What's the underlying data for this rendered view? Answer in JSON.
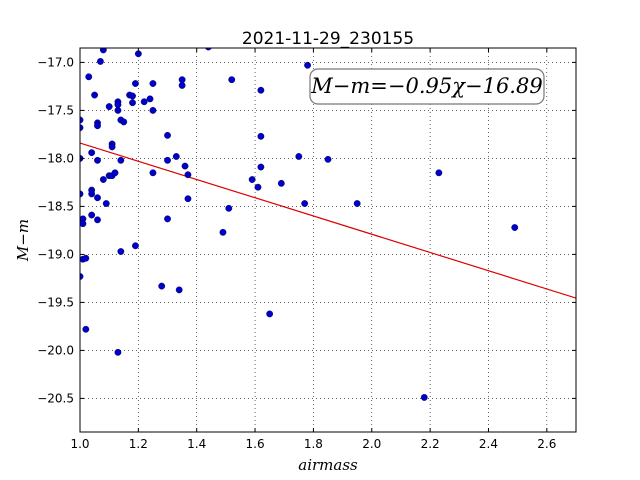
{
  "chart_data": {
    "type": "scatter",
    "title": "2021-11-29_230155",
    "xlabel": "airmass",
    "ylabel": "M−m",
    "xlim": [
      1.0,
      2.7
    ],
    "ylim": [
      -20.85,
      -16.85
    ],
    "x_ticks": [
      1.0,
      1.2,
      1.4,
      1.6,
      1.8,
      2.0,
      2.2,
      2.4,
      2.6
    ],
    "x_tick_labels": [
      "1.0",
      "1.2",
      "1.4",
      "1.6",
      "1.8",
      "2.0",
      "2.2",
      "2.4",
      "2.6"
    ],
    "y_ticks": [
      -17.0,
      -17.5,
      -18.0,
      -18.5,
      -19.0,
      -19.5,
      -20.0,
      -20.5
    ],
    "y_tick_labels": [
      "−17.0",
      "−17.5",
      "−18.0",
      "−18.5",
      "−19.0",
      "−19.5",
      "−20.0",
      "−20.5"
    ],
    "grid": true,
    "annotation": "M−m=−0.95χ−16.89",
    "point_color": "#0000cc",
    "fit_color": "#dd0000",
    "fit": {
      "slope": -0.95,
      "intercept": -16.89
    },
    "points": [
      [
        1.0,
        -17.6
      ],
      [
        1.0,
        -17.68
      ],
      [
        1.0,
        -18.0
      ],
      [
        1.0,
        -18.37
      ],
      [
        1.0,
        -19.23
      ],
      [
        1.01,
        -18.63
      ],
      [
        1.01,
        -18.68
      ],
      [
        1.01,
        -19.05
      ],
      [
        1.02,
        -19.04
      ],
      [
        1.02,
        -19.78
      ],
      [
        1.03,
        -17.15
      ],
      [
        1.04,
        -17.94
      ],
      [
        1.04,
        -18.33
      ],
      [
        1.04,
        -18.37
      ],
      [
        1.04,
        -18.59
      ],
      [
        1.05,
        -17.34
      ],
      [
        1.06,
        -17.63
      ],
      [
        1.06,
        -17.66
      ],
      [
        1.06,
        -18.02
      ],
      [
        1.06,
        -18.41
      ],
      [
        1.06,
        -18.64
      ],
      [
        1.07,
        -16.99
      ],
      [
        1.08,
        -16.87
      ],
      [
        1.08,
        -18.22
      ],
      [
        1.09,
        -18.47
      ],
      [
        1.1,
        -18.18
      ],
      [
        1.1,
        -17.46
      ],
      [
        1.11,
        -17.85
      ],
      [
        1.11,
        -17.88
      ],
      [
        1.11,
        -18.18
      ],
      [
        1.12,
        -18.15
      ],
      [
        1.13,
        -20.02
      ],
      [
        1.13,
        -17.41
      ],
      [
        1.13,
        -17.44
      ],
      [
        1.13,
        -17.5
      ],
      [
        1.14,
        -18.97
      ],
      [
        1.14,
        -17.6
      ],
      [
        1.14,
        -18.02
      ],
      [
        1.15,
        -17.62
      ],
      [
        1.17,
        -17.34
      ],
      [
        1.18,
        -17.35
      ],
      [
        1.18,
        -17.42
      ],
      [
        1.19,
        -17.22
      ],
      [
        1.19,
        -18.91
      ],
      [
        1.2,
        -16.91
      ],
      [
        1.22,
        -17.41
      ],
      [
        1.24,
        -17.38
      ],
      [
        1.25,
        -17.22
      ],
      [
        1.25,
        -17.5
      ],
      [
        1.25,
        -18.15
      ],
      [
        1.28,
        -19.33
      ],
      [
        1.3,
        -17.76
      ],
      [
        1.3,
        -18.02
      ],
      [
        1.3,
        -18.63
      ],
      [
        1.33,
        -17.98
      ],
      [
        1.34,
        -19.37
      ],
      [
        1.35,
        -17.18
      ],
      [
        1.35,
        -17.24
      ],
      [
        1.36,
        -18.08
      ],
      [
        1.37,
        -18.17
      ],
      [
        1.37,
        -18.42
      ],
      [
        1.44,
        -16.84
      ],
      [
        1.49,
        -18.77
      ],
      [
        1.51,
        -18.52
      ],
      [
        1.52,
        -17.18
      ],
      [
        1.59,
        -18.22
      ],
      [
        1.61,
        -18.3
      ],
      [
        1.62,
        -17.29
      ],
      [
        1.62,
        -17.77
      ],
      [
        1.62,
        -18.09
      ],
      [
        1.65,
        -19.62
      ],
      [
        1.69,
        -18.26
      ],
      [
        1.75,
        -17.98
      ],
      [
        1.77,
        -18.47
      ],
      [
        1.78,
        -17.03
      ],
      [
        1.85,
        -18.01
      ],
      [
        1.95,
        -18.47
      ],
      [
        2.18,
        -20.49
      ],
      [
        2.23,
        -18.15
      ],
      [
        2.49,
        -18.72
      ]
    ]
  }
}
